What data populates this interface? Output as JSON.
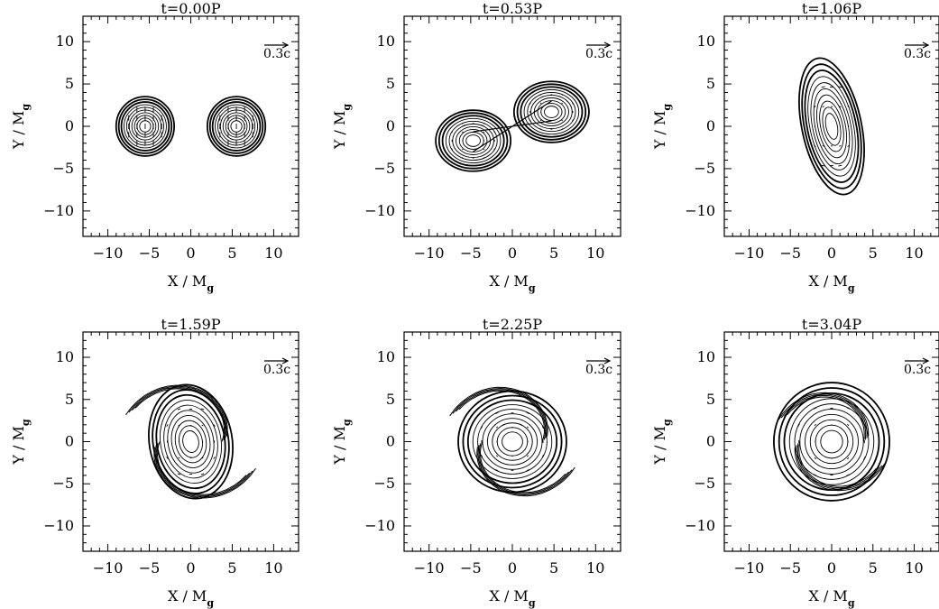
{
  "chart_data": [
    {
      "type": "contour",
      "title": "t=0.00P",
      "time": "0.00",
      "xlabel": "X / M",
      "ylabel": "Y / M",
      "label_subscript": "g",
      "xlim": [
        -13,
        13
      ],
      "ylim": [
        -13,
        13
      ],
      "xticks": [
        -10,
        -5,
        0,
        5,
        10
      ],
      "yticks": [
        -10,
        -5,
        0,
        5,
        10
      ],
      "arrow_label": "0.3c",
      "grid": false,
      "stars": [
        {
          "center": [
            -5.5,
            0
          ],
          "half_width": 3.5,
          "half_height": 3.5
        },
        {
          "center": [
            5.5,
            0
          ],
          "half_width": 3.5,
          "half_height": 3.5
        }
      ],
      "morphology": "binary"
    },
    {
      "type": "contour",
      "title": "t=0.53P",
      "time": "0.53",
      "xlabel": "X / M",
      "ylabel": "Y / M",
      "label_subscript": "g",
      "xlim": [
        -13,
        13
      ],
      "ylim": [
        -13,
        13
      ],
      "xticks": [
        -10,
        -5,
        0,
        5,
        10
      ],
      "yticks": [
        -10,
        -5,
        0,
        5,
        10
      ],
      "arrow_label": "0.3c",
      "grid": false,
      "stars": [
        {
          "center": [
            -4.7,
            -1.7
          ],
          "half_width": 4.5,
          "half_height": 3.6
        },
        {
          "center": [
            4.7,
            1.7
          ],
          "half_width": 4.5,
          "half_height": 3.6
        }
      ],
      "morphology": "bridge"
    },
    {
      "type": "contour",
      "title": "t=1.06P",
      "time": "1.06",
      "xlabel": "X / M",
      "ylabel": "Y / M",
      "label_subscript": "g",
      "xlim": [
        -13,
        13
      ],
      "ylim": [
        -13,
        13
      ],
      "xticks": [
        -10,
        -5,
        0,
        5,
        10
      ],
      "yticks": [
        -10,
        -5,
        0,
        5,
        10
      ],
      "arrow_label": "0.3c",
      "grid": false,
      "stars": [
        {
          "center": [
            0,
            0
          ],
          "half_width": 3.6,
          "half_height": 8.2,
          "rotation": -12
        }
      ],
      "morphology": "peanut"
    },
    {
      "type": "contour",
      "title": "t=1.59P",
      "time": "1.59",
      "xlabel": "X / M",
      "ylabel": "Y / M",
      "label_subscript": "g",
      "xlim": [
        -13,
        13
      ],
      "ylim": [
        -13,
        13
      ],
      "xticks": [
        -10,
        -5,
        0,
        5,
        10
      ],
      "yticks": [
        -10,
        -5,
        0,
        5,
        10
      ],
      "arrow_label": "0.3c",
      "grid": false,
      "stars": [
        {
          "center": [
            0,
            0
          ],
          "half_width": 5.0,
          "half_height": 6.8,
          "rotation": -10
        }
      ],
      "morphology": "spiral"
    },
    {
      "type": "contour",
      "title": "t=2.25P",
      "time": "2.25",
      "xlabel": "X / M",
      "ylabel": "Y / M",
      "label_subscript": "g",
      "xlim": [
        -13,
        13
      ],
      "ylim": [
        -13,
        13
      ],
      "xticks": [
        -10,
        -5,
        0,
        5,
        10
      ],
      "yticks": [
        -10,
        -5,
        0,
        5,
        10
      ],
      "arrow_label": "0.3c",
      "grid": false,
      "stars": [
        {
          "center": [
            0,
            0
          ],
          "half_width": 6.5,
          "half_height": 6.0
        }
      ],
      "morphology": "spiral"
    },
    {
      "type": "contour",
      "title": "t=3.04P",
      "time": "3.04",
      "xlabel": "X / M",
      "ylabel": "Y / M",
      "label_subscript": "g",
      "xlim": [
        -13,
        13
      ],
      "ylim": [
        -13,
        13
      ],
      "xticks": [
        -10,
        -5,
        0,
        5,
        10
      ],
      "yticks": [
        -10,
        -5,
        0,
        5,
        10
      ],
      "arrow_label": "0.3c",
      "grid": false,
      "stars": [
        {
          "center": [
            0,
            0
          ],
          "half_width": 7.0,
          "half_height": 7.0
        }
      ],
      "morphology": "disk"
    }
  ]
}
